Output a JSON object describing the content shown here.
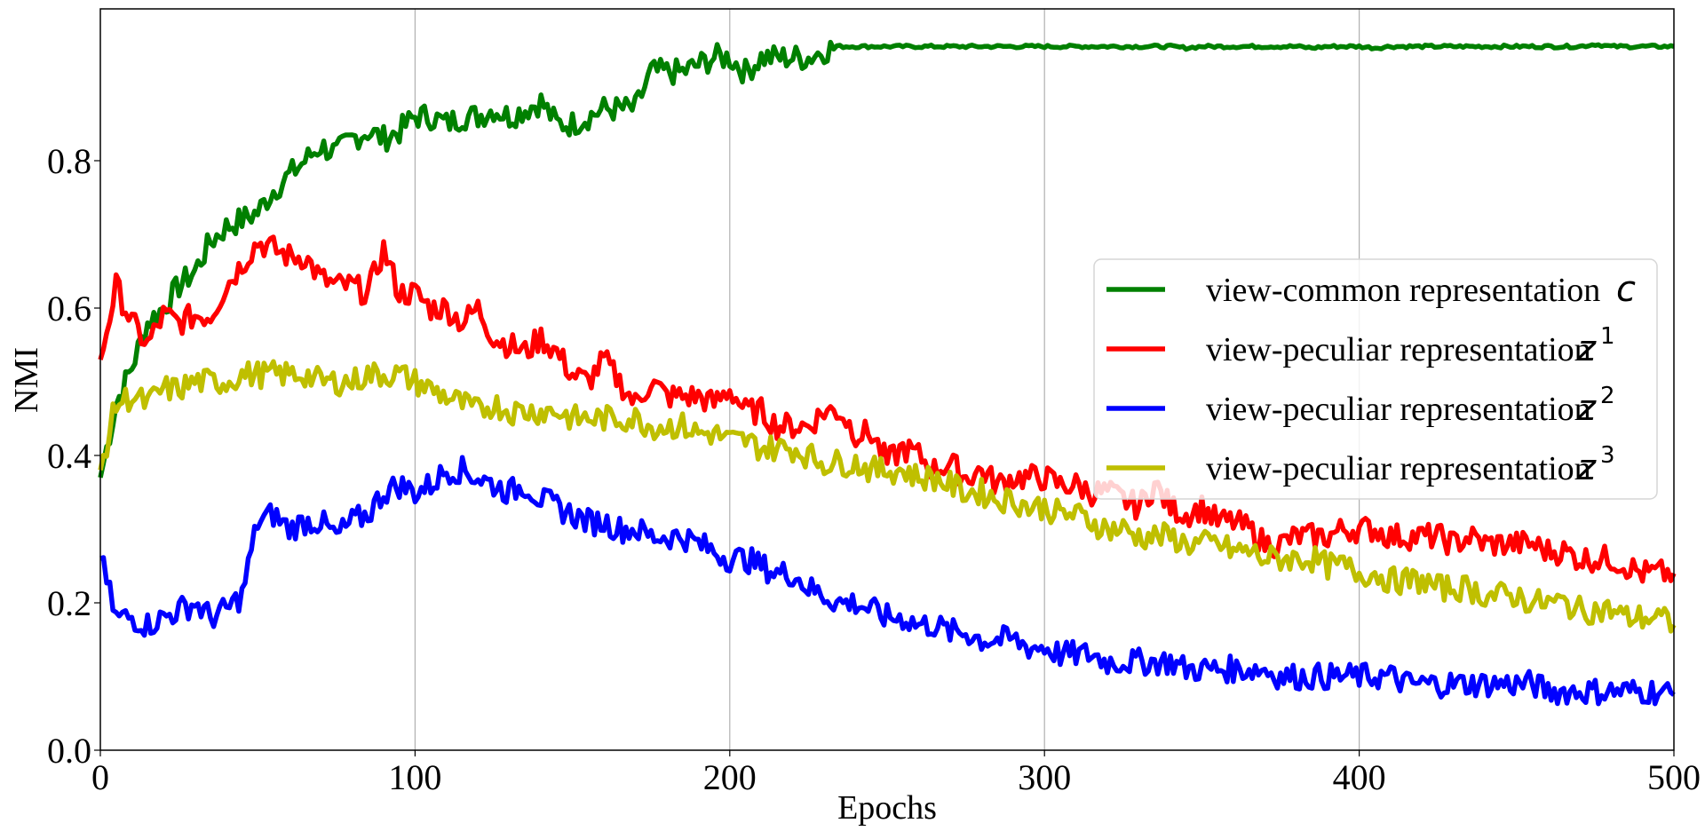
{
  "chart_data": {
    "type": "line",
    "title": "",
    "xlabel": "Epochs",
    "ylabel": "NMI",
    "xlim": [
      0,
      500
    ],
    "ylim": [
      0,
      1.0
    ],
    "xticks": [
      0,
      100,
      200,
      300,
      400,
      500
    ],
    "xtick_labels": [
      "0",
      "100",
      "200",
      "300",
      "400",
      "500"
    ],
    "yticks": [
      0.0,
      0.2,
      0.4,
      0.6,
      0.8
    ],
    "ytick_labels": [
      "0.0",
      "0.2",
      "0.4",
      "0.6",
      "0.8"
    ],
    "grid": "x-axis vertical lines only",
    "legend_position": "center right",
    "x": [
      0,
      5,
      10,
      15,
      20,
      25,
      30,
      35,
      40,
      45,
      50,
      55,
      60,
      65,
      70,
      75,
      80,
      85,
      90,
      95,
      100,
      105,
      110,
      115,
      120,
      125,
      130,
      135,
      140,
      145,
      150,
      155,
      160,
      165,
      170,
      175,
      180,
      185,
      190,
      195,
      200,
      205,
      210,
      215,
      220,
      225,
      230,
      235,
      240,
      245,
      250,
      255,
      260,
      265,
      270,
      275,
      280,
      285,
      290,
      295,
      300,
      305,
      310,
      315,
      320,
      325,
      330,
      335,
      340,
      345,
      350,
      355,
      360,
      365,
      370,
      375,
      380,
      385,
      390,
      395,
      400,
      405,
      410,
      415,
      420,
      425,
      430,
      435,
      440,
      445,
      450,
      455,
      460,
      465,
      470,
      475,
      480,
      485,
      490,
      495,
      500
    ],
    "series": [
      {
        "name": "view-common representation c",
        "color": "#008000",
        "values": [
          0.37,
          0.47,
          0.52,
          0.58,
          0.6,
          0.63,
          0.65,
          0.69,
          0.71,
          0.72,
          0.73,
          0.76,
          0.78,
          0.8,
          0.82,
          0.81,
          0.83,
          0.84,
          0.83,
          0.84,
          0.86,
          0.86,
          0.85,
          0.86,
          0.86,
          0.87,
          0.86,
          0.87,
          0.88,
          0.85,
          0.85,
          0.86,
          0.87,
          0.87,
          0.87,
          0.92,
          0.92,
          0.92,
          0.93,
          0.94,
          0.94,
          0.92,
          0.94,
          0.94,
          0.94,
          0.94,
          0.95,
          0.955,
          0.955,
          0.955,
          0.955,
          0.955,
          0.955,
          0.955,
          0.955,
          0.955,
          0.955,
          0.955,
          0.955,
          0.955,
          0.955,
          0.955,
          0.955,
          0.955,
          0.955,
          0.955,
          0.955,
          0.955,
          0.955,
          0.953,
          0.955,
          0.955,
          0.955,
          0.955,
          0.955,
          0.955,
          0.955,
          0.953,
          0.955,
          0.955,
          0.955,
          0.953,
          0.955,
          0.955,
          0.955,
          0.955,
          0.955,
          0.955,
          0.955,
          0.955,
          0.955,
          0.955,
          0.955,
          0.955,
          0.955,
          0.958,
          0.955,
          0.955,
          0.955,
          0.955,
          0.955
        ]
      },
      {
        "name": "view-peculiar representation z^1",
        "color": "#ff0000",
        "values": [
          0.53,
          0.63,
          0.58,
          0.55,
          0.59,
          0.58,
          0.59,
          0.59,
          0.63,
          0.66,
          0.69,
          0.68,
          0.67,
          0.67,
          0.64,
          0.63,
          0.63,
          0.62,
          0.68,
          0.62,
          0.62,
          0.6,
          0.6,
          0.58,
          0.6,
          0.56,
          0.55,
          0.54,
          0.56,
          0.54,
          0.51,
          0.5,
          0.53,
          0.5,
          0.47,
          0.5,
          0.48,
          0.48,
          0.48,
          0.47,
          0.49,
          0.46,
          0.46,
          0.44,
          0.44,
          0.44,
          0.46,
          0.46,
          0.43,
          0.43,
          0.39,
          0.41,
          0.4,
          0.38,
          0.39,
          0.37,
          0.38,
          0.36,
          0.37,
          0.37,
          0.37,
          0.36,
          0.36,
          0.35,
          0.35,
          0.34,
          0.33,
          0.36,
          0.33,
          0.32,
          0.33,
          0.31,
          0.31,
          0.3,
          0.28,
          0.28,
          0.29,
          0.29,
          0.29,
          0.3,
          0.3,
          0.3,
          0.29,
          0.29,
          0.29,
          0.29,
          0.28,
          0.29,
          0.28,
          0.28,
          0.28,
          0.28,
          0.27,
          0.27,
          0.26,
          0.26,
          0.26,
          0.25,
          0.24,
          0.24,
          0.24
        ]
      },
      {
        "name": "view-peculiar representation z^2",
        "color": "#0000ff",
        "values": [
          0.26,
          0.18,
          0.18,
          0.17,
          0.18,
          0.19,
          0.2,
          0.18,
          0.19,
          0.21,
          0.31,
          0.32,
          0.3,
          0.31,
          0.31,
          0.29,
          0.31,
          0.32,
          0.35,
          0.36,
          0.35,
          0.36,
          0.38,
          0.38,
          0.37,
          0.36,
          0.35,
          0.36,
          0.34,
          0.33,
          0.32,
          0.31,
          0.31,
          0.3,
          0.3,
          0.29,
          0.29,
          0.29,
          0.28,
          0.27,
          0.26,
          0.26,
          0.25,
          0.24,
          0.24,
          0.22,
          0.21,
          0.2,
          0.2,
          0.19,
          0.18,
          0.18,
          0.17,
          0.17,
          0.16,
          0.16,
          0.15,
          0.15,
          0.15,
          0.14,
          0.14,
          0.13,
          0.13,
          0.13,
          0.12,
          0.12,
          0.12,
          0.12,
          0.12,
          0.11,
          0.11,
          0.11,
          0.11,
          0.11,
          0.11,
          0.1,
          0.1,
          0.1,
          0.1,
          0.1,
          0.1,
          0.1,
          0.1,
          0.09,
          0.09,
          0.09,
          0.09,
          0.09,
          0.09,
          0.09,
          0.09,
          0.09,
          0.08,
          0.08,
          0.08,
          0.08,
          0.08,
          0.08,
          0.08,
          0.08,
          0.075
        ]
      },
      {
        "name": "view-peculiar representation z^3",
        "color": "#bfbf00",
        "values": [
          0.38,
          0.47,
          0.48,
          0.47,
          0.49,
          0.49,
          0.5,
          0.5,
          0.5,
          0.51,
          0.51,
          0.51,
          0.51,
          0.51,
          0.5,
          0.5,
          0.5,
          0.51,
          0.51,
          0.51,
          0.5,
          0.49,
          0.48,
          0.47,
          0.46,
          0.47,
          0.46,
          0.46,
          0.46,
          0.46,
          0.45,
          0.45,
          0.45,
          0.45,
          0.45,
          0.44,
          0.44,
          0.44,
          0.43,
          0.43,
          0.42,
          0.42,
          0.41,
          0.41,
          0.41,
          0.4,
          0.39,
          0.39,
          0.39,
          0.38,
          0.38,
          0.38,
          0.37,
          0.37,
          0.36,
          0.35,
          0.35,
          0.34,
          0.34,
          0.33,
          0.33,
          0.32,
          0.32,
          0.31,
          0.3,
          0.3,
          0.29,
          0.29,
          0.29,
          0.28,
          0.28,
          0.28,
          0.27,
          0.27,
          0.26,
          0.26,
          0.26,
          0.26,
          0.25,
          0.25,
          0.24,
          0.24,
          0.23,
          0.23,
          0.23,
          0.22,
          0.22,
          0.22,
          0.21,
          0.21,
          0.21,
          0.2,
          0.2,
          0.2,
          0.19,
          0.19,
          0.19,
          0.18,
          0.18,
          0.18,
          0.17
        ]
      }
    ]
  },
  "legend": {
    "items": [
      {
        "label": "view-common representation ",
        "symbol": "c",
        "sup": "",
        "color": "#008000"
      },
      {
        "label": "view-peculiar representation ",
        "symbol": "z",
        "sup": "1",
        "color": "#ff0000"
      },
      {
        "label": "view-peculiar representation ",
        "symbol": "z",
        "sup": "2",
        "color": "#0000ff"
      },
      {
        "label": "view-peculiar representation ",
        "symbol": "z",
        "sup": "3",
        "color": "#bfbf00"
      }
    ]
  },
  "axes": {
    "xlabel": "Epochs",
    "ylabel": "NMI"
  }
}
